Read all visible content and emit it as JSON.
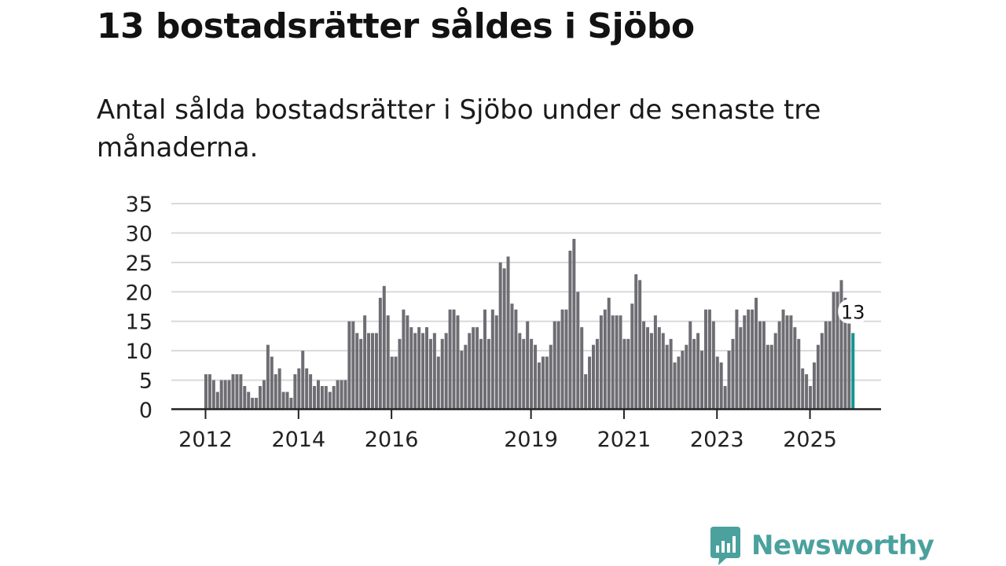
{
  "title": "13 bostadsrätter såldes i Sjöbo",
  "subtitle": "Antal sålda bostadsrätter i Sjöbo under de senaste tre månaderna.",
  "brand": {
    "name": "Newsworthy",
    "icon": "newsworthy-logo-icon",
    "color": "#4aa19d"
  },
  "colors": {
    "bar": "#6e6d73",
    "highlight": "#10958f",
    "grid": "#d9d9d9",
    "axis": "#222222"
  },
  "chart_data": {
    "type": "bar",
    "title": "Antal sålda bostadsrätter",
    "xlabel": "",
    "ylabel": "",
    "ylim": [
      0,
      35
    ],
    "yticks": [
      0,
      5,
      10,
      15,
      20,
      25,
      30,
      35
    ],
    "x_axis_labels": [
      {
        "label": "2012",
        "index": 0
      },
      {
        "label": "2014",
        "index": 24
      },
      {
        "label": "2016",
        "index": 48
      },
      {
        "label": "2019",
        "index": 84
      },
      {
        "label": "2021",
        "index": 108
      },
      {
        "label": "2023",
        "index": 132
      },
      {
        "label": "2025",
        "index": 156
      }
    ],
    "start": "2012-01",
    "values": [
      6,
      6,
      5,
      3,
      5,
      5,
      5,
      6,
      6,
      6,
      4,
      3,
      2,
      2,
      4,
      5,
      11,
      9,
      6,
      7,
      3,
      3,
      2,
      6,
      7,
      10,
      7,
      6,
      4,
      5,
      4,
      4,
      3,
      4,
      5,
      5,
      5,
      15,
      15,
      13,
      12,
      16,
      13,
      13,
      13,
      19,
      21,
      16,
      9,
      9,
      12,
      17,
      16,
      14,
      13,
      14,
      13,
      14,
      12,
      13,
      9,
      12,
      13,
      17,
      17,
      16,
      10,
      11,
      13,
      14,
      14,
      12,
      17,
      12,
      17,
      16,
      25,
      24,
      26,
      18,
      17,
      13,
      12,
      15,
      12,
      11,
      8,
      9,
      9,
      11,
      15,
      15,
      17,
      17,
      27,
      29,
      20,
      14,
      6,
      9,
      11,
      12,
      16,
      17,
      19,
      16,
      16,
      16,
      12,
      12,
      18,
      23,
      22,
      15,
      14,
      13,
      16,
      14,
      13,
      11,
      12,
      8,
      9,
      10,
      11,
      15,
      12,
      13,
      10,
      17,
      17,
      15,
      9,
      8,
      4,
      10,
      12,
      17,
      14,
      16,
      17,
      17,
      19,
      15,
      15,
      11,
      11,
      13,
      15,
      17,
      16,
      16,
      14,
      12,
      7,
      6,
      4,
      8,
      11,
      13,
      15,
      15,
      20,
      20,
      22,
      19,
      16,
      13
    ],
    "highlight": {
      "index": 167,
      "label": "13"
    }
  }
}
